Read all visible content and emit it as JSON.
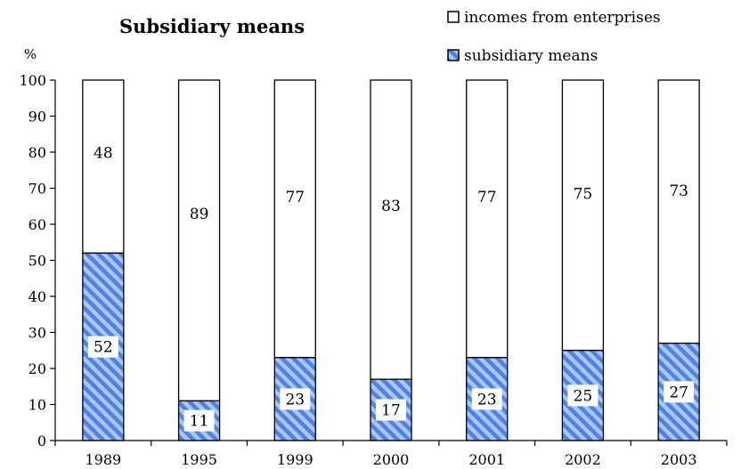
{
  "chart_data": {
    "type": "bar",
    "stacked": true,
    "title": "Subsidiary means",
    "ylabel": "%",
    "xlabel": "",
    "ylim": [
      0,
      100
    ],
    "yticks": [
      0,
      10,
      20,
      30,
      40,
      50,
      60,
      70,
      80,
      90,
      100
    ],
    "grid": false,
    "legend_position": "top-right",
    "categories": [
      "1989",
      "1995",
      "1999",
      "2000",
      "2001",
      "2002",
      "2003"
    ],
    "series": [
      {
        "name": "subsidiary means",
        "values": [
          52,
          11,
          23,
          17,
          23,
          25,
          27
        ],
        "color": "#4f81e6",
        "pattern": "diagonal-stripes"
      },
      {
        "name": "incomes from enterprises",
        "values": [
          48,
          89,
          77,
          83,
          77,
          75,
          73
        ],
        "color": "#ffffff",
        "pattern": "solid"
      }
    ],
    "legend": [
      {
        "label": "incomes from enterprises",
        "color": "#ffffff"
      },
      {
        "label": "subsidiary means",
        "color": "#4f81e6"
      }
    ]
  }
}
